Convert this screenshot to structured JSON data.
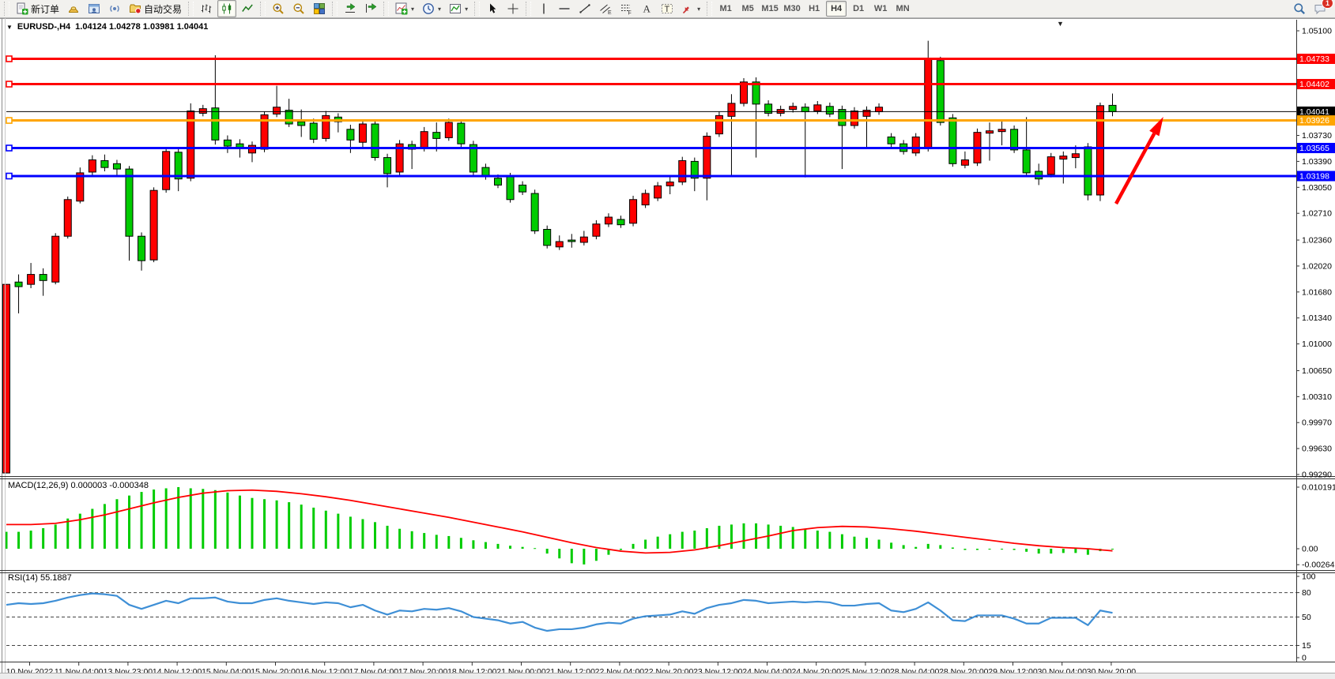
{
  "app_accent": "#ff0000",
  "toolbar": {
    "buttons": [
      {
        "icon": "new-order-icon",
        "label": "新订单"
      },
      {
        "icon": "gold-ingot-icon"
      },
      {
        "icon": "market-watch-icon"
      },
      {
        "icon": "broadcast-icon"
      },
      {
        "icon": "auto-trading-icon",
        "label": "自动交易"
      },
      {
        "sep": true
      },
      {
        "icon": "bar-chart-icon"
      },
      {
        "icon": "candlestick-chart-icon",
        "active": true
      },
      {
        "icon": "line-chart-icon"
      },
      {
        "sep": true
      },
      {
        "icon": "zoom-in-icon"
      },
      {
        "icon": "zoom-out-icon"
      },
      {
        "icon": "tile-windows-icon"
      },
      {
        "sep": true
      },
      {
        "icon": "auto-scroll-icon"
      },
      {
        "icon": "chart-shift-icon"
      },
      {
        "sep": true
      },
      {
        "icon": "indicators-icon",
        "dropdown": true
      },
      {
        "icon": "periods-icon",
        "dropdown": true
      },
      {
        "icon": "templates-icon",
        "dropdown": true
      },
      {
        "sep": true
      },
      {
        "icon": "cursor-icon"
      },
      {
        "icon": "crosshair-icon"
      },
      {
        "sep": true
      },
      {
        "icon": "vertical-line-icon"
      },
      {
        "icon": "horizontal-line-icon"
      },
      {
        "icon": "trend-line-icon"
      },
      {
        "icon": "equidistant-channel-icon"
      },
      {
        "icon": "fibonacci-icon"
      },
      {
        "icon": "text-icon"
      },
      {
        "icon": "text-label-icon"
      },
      {
        "icon": "arrows-icon",
        "dropdown": true
      },
      {
        "sep": true
      }
    ],
    "timeframes": [
      {
        "label": "M1"
      },
      {
        "label": "M5"
      },
      {
        "label": "M15"
      },
      {
        "label": "M30"
      },
      {
        "label": "H1"
      },
      {
        "label": "H4",
        "active": true
      },
      {
        "label": "D1"
      },
      {
        "label": "W1"
      },
      {
        "label": "MN"
      }
    ],
    "right_icons": [
      {
        "icon": "search-icon"
      },
      {
        "icon": "chat-icon",
        "badge": "1"
      }
    ]
  },
  "chart": {
    "title": {
      "symbol": "EURUSD-,H4",
      "ohlc": "1.04124 1.04278 1.03981 1.04041"
    },
    "current_price": "1.04041",
    "price_axis_labels": [
      "1.05100",
      "1.03730",
      "1.03390",
      "1.03050",
      "1.02710",
      "1.02360",
      "1.02020",
      "1.01680",
      "1.01340",
      "1.01000",
      "1.00650",
      "1.00310",
      "0.99970",
      "0.99630",
      "0.99290"
    ],
    "price_badges": [
      {
        "text": "1.04733",
        "color": "#ff0000"
      },
      {
        "text": "1.04402",
        "color": "#ff0000"
      },
      {
        "text": "1.04041",
        "color": "#000000"
      },
      {
        "text": "1.03926",
        "color": "#ffa500"
      },
      {
        "text": "1.03565",
        "color": "#0000ff"
      },
      {
        "text": "1.03198",
        "color": "#0000ff"
      }
    ],
    "hlines": [
      {
        "price": 1.04733,
        "color": "#ff0000",
        "width": 3
      },
      {
        "price": 1.04402,
        "color": "#ff0000",
        "width": 3
      },
      {
        "price": 1.03926,
        "color": "#ffa500",
        "width": 3
      },
      {
        "price": 1.03565,
        "color": "#0000ff",
        "width": 3
      },
      {
        "price": 1.03198,
        "color": "#0000ff",
        "width": 3
      }
    ],
    "annotation_arrow": {
      "type": "arrow",
      "color": "#ff0000",
      "from": [
        1412,
        258
      ],
      "to": [
        1468,
        155
      ]
    },
    "colors": {
      "bull": "#ff0000",
      "bear": "#00cc00",
      "wick": "#000000",
      "macd_hist": "#00cc00",
      "macd_signal": "#ff0000",
      "rsi_line": "#3e8fd6"
    },
    "time_axis_labels": [
      "10 Nov 2022",
      "11 Nov 04:00",
      "13 Nov 23:00",
      "14 Nov 12:00",
      "15 Nov 04:00",
      "15 Nov 20:00",
      "16 Nov 12:00",
      "17 Nov 04:00",
      "17 Nov 20:00",
      "18 Nov 12:00",
      "21 Nov 00:00",
      "21 Nov 12:00",
      "22 Nov 04:00",
      "22 Nov 20:00",
      "23 Nov 12:00",
      "24 Nov 04:00",
      "24 Nov 20:00",
      "25 Nov 12:00",
      "28 Nov 04:00",
      "28 Nov 20:00",
      "29 Nov 12:00",
      "30 Nov 04:00",
      "30 Nov 20:00"
    ],
    "chart_data": {
      "type": "candlestick",
      "symbol_period": "EURUSD- H4",
      "note": "o,h,l,c per bar; red body = close>=open (CN convention), green = close<open",
      "candles": [
        [
          0.9931,
          1.0178,
          0.9931,
          1.0178
        ],
        [
          1.0181,
          1.0191,
          1.014,
          1.0175
        ],
        [
          1.0178,
          1.0206,
          1.0173,
          1.0191
        ],
        [
          1.0191,
          1.0199,
          1.0163,
          1.0183
        ],
        [
          1.0181,
          1.0245,
          1.0178,
          1.0241
        ],
        [
          1.0241,
          1.0293,
          1.0238,
          1.0289
        ],
        [
          1.0287,
          1.0331,
          1.0284,
          1.0324
        ],
        [
          1.0325,
          1.0347,
          1.0321,
          1.0341
        ],
        [
          1.034,
          1.0348,
          1.0326,
          1.0331
        ],
        [
          1.0336,
          1.0341,
          1.0321,
          1.0329
        ],
        [
          1.0329,
          1.0333,
          1.0209,
          1.0241
        ],
        [
          1.0241,
          1.0246,
          1.0196,
          1.0209
        ],
        [
          1.021,
          1.0305,
          1.0207,
          1.0301
        ],
        [
          1.0302,
          1.0357,
          1.0298,
          1.0352
        ],
        [
          1.0351,
          1.0355,
          1.03,
          1.0316
        ],
        [
          1.0317,
          1.0415,
          1.0313,
          1.0405
        ],
        [
          1.0402,
          1.0413,
          1.0398,
          1.0408
        ],
        [
          1.0409,
          1.0478,
          1.0361,
          1.0367
        ],
        [
          1.0367,
          1.0373,
          1.035,
          1.0359
        ],
        [
          1.0362,
          1.0368,
          1.0344,
          1.0356
        ],
        [
          1.035,
          1.0365,
          1.0338,
          1.036
        ],
        [
          1.0355,
          1.0404,
          1.0351,
          1.04
        ],
        [
          1.0401,
          1.0438,
          1.0397,
          1.041
        ],
        [
          1.0406,
          1.0421,
          1.0384,
          1.0388
        ],
        [
          1.0391,
          1.0407,
          1.0371,
          1.0386
        ],
        [
          1.0389,
          1.0395,
          1.0363,
          1.0368
        ],
        [
          1.0369,
          1.0405,
          1.0365,
          1.0399
        ],
        [
          1.0397,
          1.0402,
          1.0377,
          1.0391
        ],
        [
          1.0381,
          1.0387,
          1.035,
          1.0367
        ],
        [
          1.0364,
          1.0393,
          1.0357,
          1.0388
        ],
        [
          1.0388,
          1.0393,
          1.034,
          1.0344
        ],
        [
          1.0344,
          1.0349,
          1.0305,
          1.0323
        ],
        [
          1.0325,
          1.0367,
          1.0321,
          1.0362
        ],
        [
          1.0361,
          1.0366,
          1.0329,
          1.0355
        ],
        [
          1.0356,
          1.0384,
          1.0352,
          1.0378
        ],
        [
          1.0377,
          1.039,
          1.0352,
          1.0369
        ],
        [
          1.037,
          1.0395,
          1.0366,
          1.039
        ],
        [
          1.0389,
          1.0394,
          1.0358,
          1.0362
        ],
        [
          1.0361,
          1.0366,
          1.0321,
          1.0325
        ],
        [
          1.0331,
          1.0336,
          1.0315,
          1.0319
        ],
        [
          1.0317,
          1.0322,
          1.0304,
          1.0308
        ],
        [
          1.0319,
          1.0324,
          1.0285,
          1.0289
        ],
        [
          1.0308,
          1.0313,
          1.0295,
          1.0299
        ],
        [
          1.0297,
          1.0302,
          1.0244,
          1.0248
        ],
        [
          1.025,
          1.0255,
          1.0225,
          1.0229
        ],
        [
          1.0227,
          1.0242,
          1.0223,
          1.0234
        ],
        [
          1.0236,
          1.0244,
          1.0226,
          1.0234
        ],
        [
          1.0233,
          1.0248,
          1.0229,
          1.024
        ],
        [
          1.0241,
          1.0262,
          1.0237,
          1.0257
        ],
        [
          1.0257,
          1.0271,
          1.0253,
          1.0266
        ],
        [
          1.0263,
          1.0268,
          1.0252,
          1.0256
        ],
        [
          1.0258,
          1.0294,
          1.0254,
          1.0289
        ],
        [
          1.0282,
          1.0302,
          1.0278,
          1.0297
        ],
        [
          1.0291,
          1.0312,
          1.0287,
          1.0307
        ],
        [
          1.0307,
          1.0319,
          1.0296,
          1.0312
        ],
        [
          1.0312,
          1.0345,
          1.0308,
          1.034
        ],
        [
          1.0339,
          1.0344,
          1.03,
          1.0317
        ],
        [
          1.0317,
          1.0377,
          1.0288,
          1.0372
        ],
        [
          1.0375,
          1.0404,
          1.0371,
          1.0399
        ],
        [
          1.0398,
          1.0427,
          1.0321,
          1.0415
        ],
        [
          1.0415,
          1.0448,
          1.0411,
          1.0443
        ],
        [
          1.0443,
          1.0449,
          1.0344,
          1.0414
        ],
        [
          1.0414,
          1.0419,
          1.0398,
          1.0402
        ],
        [
          1.0402,
          1.0412,
          1.0398,
          1.0407
        ],
        [
          1.0407,
          1.0416,
          1.0403,
          1.0411
        ],
        [
          1.041,
          1.0415,
          1.0318,
          1.0404
        ],
        [
          1.0405,
          1.0418,
          1.0401,
          1.0413
        ],
        [
          1.0411,
          1.0416,
          1.0397,
          1.0401
        ],
        [
          1.0407,
          1.0412,
          1.0329,
          1.0386
        ],
        [
          1.0386,
          1.041,
          1.0382,
          1.0405
        ],
        [
          1.0398,
          1.0411,
          1.0356,
          1.0406
        ],
        [
          1.0404,
          1.0415,
          1.04,
          1.041
        ],
        [
          1.0371,
          1.0376,
          1.0358,
          1.0362
        ],
        [
          1.0362,
          1.0367,
          1.0348,
          1.0352
        ],
        [
          1.035,
          1.0376,
          1.0346,
          1.0371
        ],
        [
          1.0356,
          1.0497,
          1.0352,
          1.0473
        ],
        [
          1.0471,
          1.0476,
          1.0386,
          1.039
        ],
        [
          1.0396,
          1.0401,
          1.0332,
          1.0336
        ],
        [
          1.0334,
          1.0352,
          1.033,
          1.0341
        ],
        [
          1.0337,
          1.0382,
          1.0333,
          1.0377
        ],
        [
          1.0376,
          1.039,
          1.034,
          1.0379
        ],
        [
          1.0378,
          1.0392,
          1.036,
          1.0381
        ],
        [
          1.0381,
          1.0386,
          1.035,
          1.0354
        ],
        [
          1.0354,
          1.0397,
          1.032,
          1.0324
        ],
        [
          1.0326,
          1.0336,
          1.0308,
          1.0316
        ],
        [
          1.0322,
          1.035,
          1.0318,
          1.0345
        ],
        [
          1.0342,
          1.0352,
          1.031,
          1.0346
        ],
        [
          1.0344,
          1.036,
          1.033,
          1.0349
        ],
        [
          1.0358,
          1.0363,
          1.0288,
          1.0295
        ],
        [
          1.0295,
          1.0416,
          1.0287,
          1.0412
        ],
        [
          1.04124,
          1.04278,
          1.03981,
          1.04041
        ]
      ]
    },
    "macd": {
      "label": "MACD(12,26,9)",
      "values_text": "0.000003 -0.000348",
      "axis": {
        "max": "0.010191",
        "zero": "0.00",
        "min": "-0.002642"
      },
      "histogram": [
        0.0028,
        0.0028,
        0.003,
        0.0034,
        0.004,
        0.005,
        0.0058,
        0.0066,
        0.0074,
        0.0082,
        0.0088,
        0.0094,
        0.0098,
        0.01,
        0.0102,
        0.01,
        0.0099,
        0.0097,
        0.0093,
        0.0088,
        0.0084,
        0.0082,
        0.008,
        0.0077,
        0.0073,
        0.0068,
        0.0063,
        0.0058,
        0.0053,
        0.0049,
        0.0044,
        0.0038,
        0.0033,
        0.0029,
        0.0026,
        0.0023,
        0.0021,
        0.0018,
        0.0014,
        0.0011,
        0.0008,
        0.0005,
        0.0003,
        0.0001,
        -0.0008,
        -0.0016,
        -0.0024,
        -0.0026,
        -0.002,
        -0.001,
        -0.0002,
        0.0008,
        0.0015,
        0.002,
        0.0024,
        0.0028,
        0.003,
        0.0034,
        0.0038,
        0.004,
        0.0042,
        0.0042,
        0.004,
        0.0038,
        0.0036,
        0.0033,
        0.003,
        0.0028,
        0.0024,
        0.002,
        0.0018,
        0.0015,
        0.001,
        0.0006,
        0.0003,
        0.0008,
        0.0006,
        0.0002,
        -0.0002,
        -0.0002,
        -0.0001,
        0.0,
        -0.0002,
        -0.0005,
        -0.0008,
        -0.0008,
        -0.0007,
        -0.0007,
        -0.001,
        -0.0004,
        3e-06
      ],
      "signal_every_2_bars": [
        0.004,
        0.004,
        0.0042,
        0.0048,
        0.0056,
        0.0066,
        0.0076,
        0.0085,
        0.0092,
        0.0096,
        0.0097,
        0.0095,
        0.0091,
        0.0086,
        0.008,
        0.0073,
        0.0066,
        0.0059,
        0.0052,
        0.0044,
        0.0036,
        0.0028,
        0.0019,
        0.001,
        0.0002,
        -0.0004,
        -0.0007,
        -0.0006,
        -0.0002,
        0.0005,
        0.0013,
        0.0021,
        0.003,
        0.0035,
        0.0037,
        0.0036,
        0.0033,
        0.0029,
        0.0024,
        0.0019,
        0.0014,
        0.0009,
        0.0005,
        0.0002,
        0.0,
        -0.00035
      ]
    },
    "rsi": {
      "label_text": "RSI(14) 55.1887",
      "axis_labels": [
        "100",
        "80",
        "50",
        "15",
        "0"
      ],
      "dashed_levels": [
        80,
        50,
        15
      ],
      "values": [
        65,
        67,
        66,
        67,
        70,
        74,
        77,
        79,
        78,
        76,
        65,
        60,
        65,
        70,
        67,
        73,
        73,
        74,
        69,
        67,
        67,
        71,
        73,
        70,
        68,
        66,
        68,
        67,
        62,
        65,
        58,
        53,
        58,
        57,
        60,
        59,
        61,
        57,
        50,
        48,
        46,
        42,
        44,
        37,
        33,
        35,
        35,
        37,
        41,
        43,
        42,
        48,
        51,
        52,
        53,
        57,
        54,
        61,
        65,
        67,
        71,
        70,
        67,
        68,
        69,
        68,
        69,
        68,
        64,
        64,
        66,
        67,
        58,
        56,
        60,
        68,
        58,
        46,
        45,
        52,
        52,
        52,
        48,
        42,
        42,
        49,
        49,
        49,
        40,
        58,
        55.19
      ]
    }
  }
}
